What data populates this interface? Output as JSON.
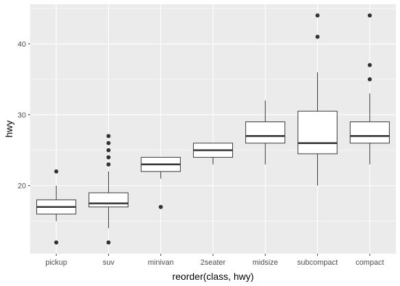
{
  "chart_data": {
    "type": "boxplot",
    "xlabel": "reorder(class, hwy)",
    "ylabel": "hwy",
    "ylim": [
      10.4,
      45.6
    ],
    "yticks": [
      20,
      30,
      40
    ],
    "y_tick_labels": [
      "20",
      "30",
      "40"
    ],
    "grid": true,
    "legend": "none",
    "colors": {
      "panel": "#ebebeb",
      "grid": "#ffffff",
      "box_fill": "#ffffff",
      "box_line": "#333333",
      "point": "#333333"
    },
    "categories": [
      "pickup",
      "suv",
      "minivan",
      "2seater",
      "midsize",
      "subcompact",
      "compact"
    ],
    "boxes": [
      {
        "category": "pickup",
        "whisker_low": 15,
        "q1": 16,
        "median": 17,
        "q3": 18,
        "whisker_high": 20,
        "outliers": [
          12,
          22
        ]
      },
      {
        "category": "suv",
        "whisker_low": 14,
        "q1": 17,
        "median": 17.5,
        "q3": 19,
        "whisker_high": 22,
        "outliers": [
          12,
          23,
          24,
          25,
          26,
          27
        ]
      },
      {
        "category": "minivan",
        "whisker_low": 21,
        "q1": 22,
        "median": 23,
        "q3": 24,
        "whisker_high": 24,
        "outliers": [
          17
        ]
      },
      {
        "category": "2seater",
        "whisker_low": 23,
        "q1": 24,
        "median": 25,
        "q3": 26,
        "whisker_high": 26,
        "outliers": []
      },
      {
        "category": "midsize",
        "whisker_low": 23,
        "q1": 26,
        "median": 27,
        "q3": 29,
        "whisker_high": 32,
        "outliers": []
      },
      {
        "category": "subcompact",
        "whisker_low": 20,
        "q1": 24.5,
        "median": 26,
        "q3": 30.5,
        "whisker_high": 36,
        "outliers": [
          41,
          44
        ]
      },
      {
        "category": "compact",
        "whisker_low": 23,
        "q1": 26,
        "median": 27,
        "q3": 29,
        "whisker_high": 33,
        "outliers": [
          35,
          37,
          44
        ]
      }
    ]
  }
}
